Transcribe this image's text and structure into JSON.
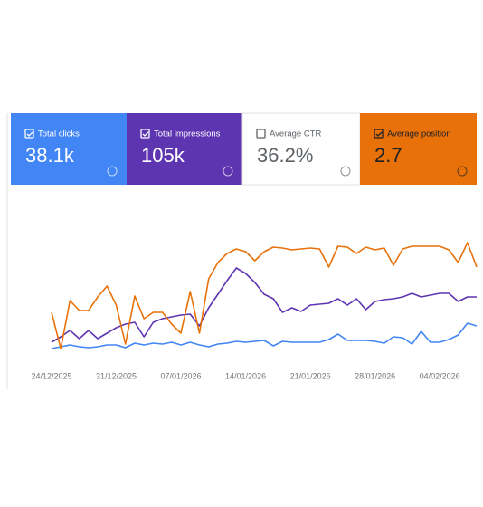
{
  "cards": [
    {
      "label": "Total clicks",
      "value": "38.1k",
      "checked": true,
      "bg": "#4285f4",
      "fg": "#ffffff"
    },
    {
      "label": "Total impressions",
      "value": "105k",
      "checked": true,
      "bg": "#5e35b1",
      "fg": "#ffffff"
    },
    {
      "label": "Average CTR",
      "value": "36.2%",
      "checked": false,
      "bg": "#ffffff",
      "fg": "#5f6368"
    },
    {
      "label": "Average position",
      "value": "2.7",
      "checked": true,
      "bg": "#e8710a",
      "fg": "#202124"
    }
  ],
  "chart_data": {
    "type": "line",
    "categories": [
      "24/12/2025",
      null,
      null,
      null,
      null,
      null,
      null,
      "31/12/2025",
      null,
      null,
      null,
      null,
      null,
      null,
      "07/01/2026",
      null,
      null,
      null,
      null,
      null,
      null,
      "14/01/2026",
      null,
      null,
      null,
      null,
      null,
      null,
      "21/01/2026",
      null,
      null,
      null,
      null,
      null,
      null,
      "28/01/2026",
      null,
      null,
      null,
      null,
      null,
      null,
      "04/02/2026",
      null,
      null,
      null,
      null
    ],
    "ylim": [
      0,
      170
    ],
    "series": [
      {
        "color": "#4285f4",
        "values": [
          15,
          17,
          19,
          17,
          16,
          17,
          19,
          19,
          16,
          21,
          19,
          21,
          20,
          22,
          19,
          22,
          19,
          17,
          20,
          21,
          23,
          22,
          23,
          24,
          18,
          23,
          22,
          22,
          22,
          22,
          25,
          31,
          24,
          24,
          24,
          23,
          21,
          28,
          27,
          20,
          34,
          22,
          22,
          25,
          30,
          43,
          40
        ]
      },
      {
        "color": "#5e35b1",
        "values": [
          22,
          28,
          35,
          26,
          35,
          26,
          32,
          38,
          42,
          44,
          28,
          44,
          48,
          50,
          52,
          53,
          40,
          60,
          75,
          90,
          104,
          98,
          88,
          75,
          70,
          55,
          60,
          56,
          63,
          64,
          65,
          70,
          63,
          70,
          58,
          67,
          69,
          70,
          72,
          76,
          72,
          74,
          76,
          76,
          67,
          72,
          72
        ]
      },
      {
        "color": "#e8710a",
        "values": [
          55,
          15,
          68,
          57,
          57,
          72,
          84,
          63,
          20,
          73,
          48,
          55,
          55,
          42,
          32,
          78,
          32,
          92,
          110,
          120,
          125,
          122,
          112,
          122,
          127,
          126,
          124,
          125,
          126,
          125,
          105,
          128,
          127,
          120,
          127,
          124,
          126,
          107,
          125,
          128,
          128,
          128,
          128,
          124,
          110,
          132,
          105
        ]
      }
    ]
  }
}
